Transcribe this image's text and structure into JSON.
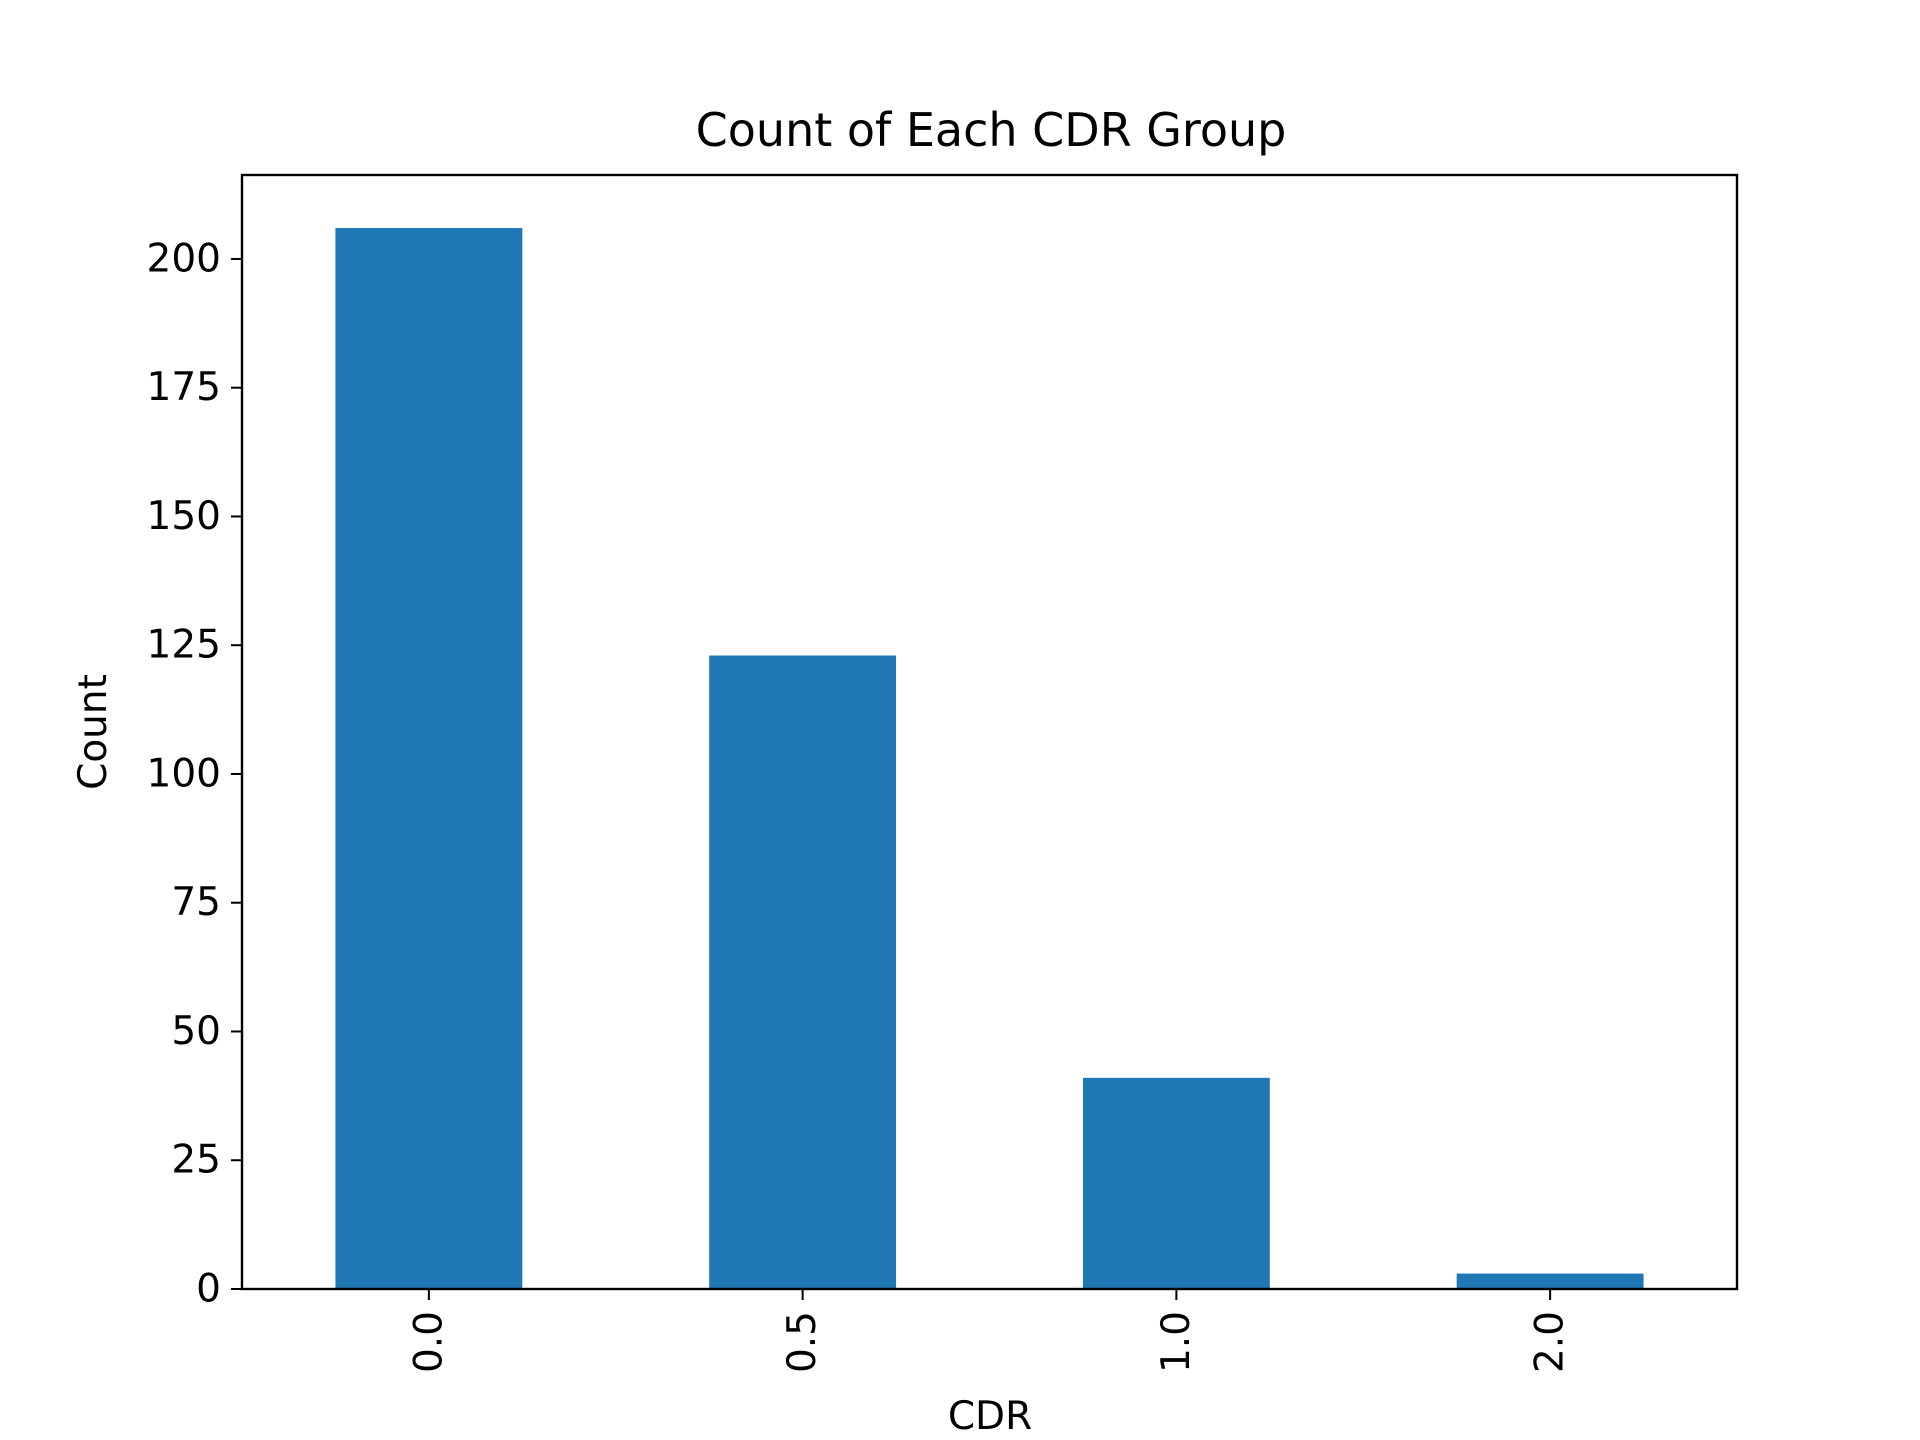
{
  "chart_data": {
    "type": "bar",
    "title": "Count of Each CDR Group",
    "xlabel": "CDR",
    "ylabel": "Count",
    "categories": [
      "0.0",
      "0.5",
      "1.0",
      "2.0"
    ],
    "values": [
      206,
      123,
      41,
      3
    ],
    "ylim": [
      0,
      216.3
    ],
    "yticks": [
      0,
      25,
      50,
      75,
      100,
      125,
      150,
      175,
      200
    ],
    "ytick_labels": [
      "0",
      "25",
      "50",
      "75",
      "100",
      "125",
      "150",
      "175",
      "200"
    ],
    "bar_color": "#1f77b4",
    "grid": false,
    "x_tick_rotation_deg": 90
  }
}
